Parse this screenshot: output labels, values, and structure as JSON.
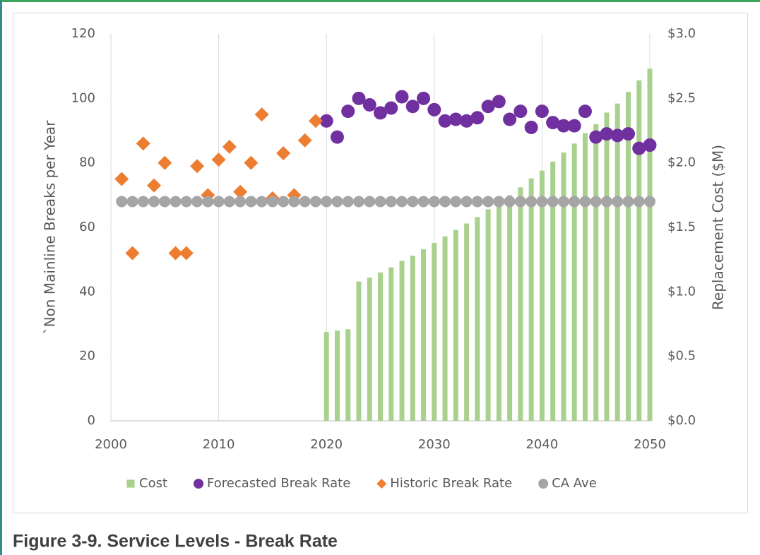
{
  "chart_data": {
    "type": "combo",
    "caption": "Figure 3-9. Service Levels - Break Rate",
    "ylabel": "`Non Mainline Breaks per Year",
    "y2label": "Replacement Cost ($M)",
    "xlim": [
      2000,
      2050
    ],
    "xticks": [
      2000,
      2010,
      2020,
      2030,
      2040,
      2050
    ],
    "ylim": [
      0,
      120
    ],
    "yticks": [
      0,
      20,
      40,
      60,
      80,
      100,
      120
    ],
    "y2lim": [
      0,
      3.0
    ],
    "y2ticks": [
      {
        "value": 0,
        "label": "$0.0"
      },
      {
        "value": 0.5,
        "label": "$0.5"
      },
      {
        "value": 1.0,
        "label": "$1.0"
      },
      {
        "value": 1.5,
        "label": "$1.5"
      },
      {
        "value": 2.0,
        "label": "$2.0"
      },
      {
        "value": 2.5,
        "label": "$2.5"
      },
      {
        "value": 3.0,
        "label": "$3.0"
      }
    ],
    "grid": "x",
    "legend": "bottom",
    "series": [
      {
        "name": "Cost",
        "type": "bar",
        "axis": "y2",
        "color": "#a9d18e",
        "marker": "square",
        "x": [
          2020,
          2021,
          2022,
          2023,
          2024,
          2025,
          2026,
          2027,
          2028,
          2029,
          2030,
          2031,
          2032,
          2033,
          2034,
          2035,
          2036,
          2037,
          2038,
          2039,
          2040,
          2041,
          2042,
          2043,
          2044,
          2045,
          2046,
          2047,
          2048,
          2049,
          2050
        ],
        "values": [
          0.69,
          0.7,
          0.71,
          1.08,
          1.11,
          1.15,
          1.19,
          1.24,
          1.28,
          1.33,
          1.38,
          1.43,
          1.48,
          1.53,
          1.58,
          1.64,
          1.7,
          1.75,
          1.81,
          1.88,
          1.94,
          2.01,
          2.08,
          2.15,
          2.23,
          2.3,
          2.39,
          2.46,
          2.55,
          2.64,
          2.73
        ]
      },
      {
        "name": "Forecasted Break Rate",
        "type": "scatter",
        "color": "#7030a0",
        "marker": "circle",
        "x": [
          2020,
          2021,
          2022,
          2023,
          2024,
          2025,
          2026,
          2027,
          2028,
          2029,
          2030,
          2031,
          2032,
          2033,
          2034,
          2035,
          2036,
          2037,
          2038,
          2039,
          2040,
          2041,
          2042,
          2043,
          2044,
          2045,
          2046,
          2047,
          2048,
          2049,
          2050
        ],
        "values": [
          93,
          88,
          96,
          100,
          98,
          95.5,
          97,
          100.5,
          97.5,
          100,
          96.5,
          93,
          93.5,
          93,
          94,
          97.5,
          99,
          93.5,
          96,
          91,
          96,
          92.5,
          91.5,
          91.5,
          96,
          88,
          89,
          88.5,
          89,
          84.5,
          85.5
        ]
      },
      {
        "name": "Historic Break Rate",
        "type": "scatter",
        "color": "#ed7d31",
        "marker": "diamond",
        "x": [
          2001,
          2002,
          2003,
          2004,
          2005,
          2006,
          2007,
          2008,
          2009,
          2010,
          2011,
          2012,
          2013,
          2014,
          2015,
          2016,
          2017,
          2018,
          2019
        ],
        "values": [
          75,
          52,
          86,
          73,
          80,
          52,
          52,
          79,
          70,
          81,
          85,
          71,
          80,
          95,
          69,
          83,
          70,
          87,
          93
        ]
      },
      {
        "name": "CA Ave",
        "type": "scatter",
        "color": "#a5a5a5",
        "marker": "circle",
        "x": [
          2001,
          2002,
          2003,
          2004,
          2005,
          2006,
          2007,
          2008,
          2009,
          2010,
          2011,
          2012,
          2013,
          2014,
          2015,
          2016,
          2017,
          2018,
          2019,
          2020,
          2021,
          2022,
          2023,
          2024,
          2025,
          2026,
          2027,
          2028,
          2029,
          2030,
          2031,
          2032,
          2033,
          2034,
          2035,
          2036,
          2037,
          2038,
          2039,
          2040,
          2041,
          2042,
          2043,
          2044,
          2045,
          2046,
          2047,
          2048,
          2049,
          2050
        ],
        "values": [
          68,
          68,
          68,
          68,
          68,
          68,
          68,
          68,
          68,
          68,
          68,
          68,
          68,
          68,
          68,
          68,
          68,
          68,
          68,
          68,
          68,
          68,
          68,
          68,
          68,
          68,
          68,
          68,
          68,
          68,
          68,
          68,
          68,
          68,
          68,
          68,
          68,
          68,
          68,
          68,
          68,
          68,
          68,
          68,
          68,
          68,
          68,
          68,
          68,
          68
        ]
      }
    ]
  }
}
